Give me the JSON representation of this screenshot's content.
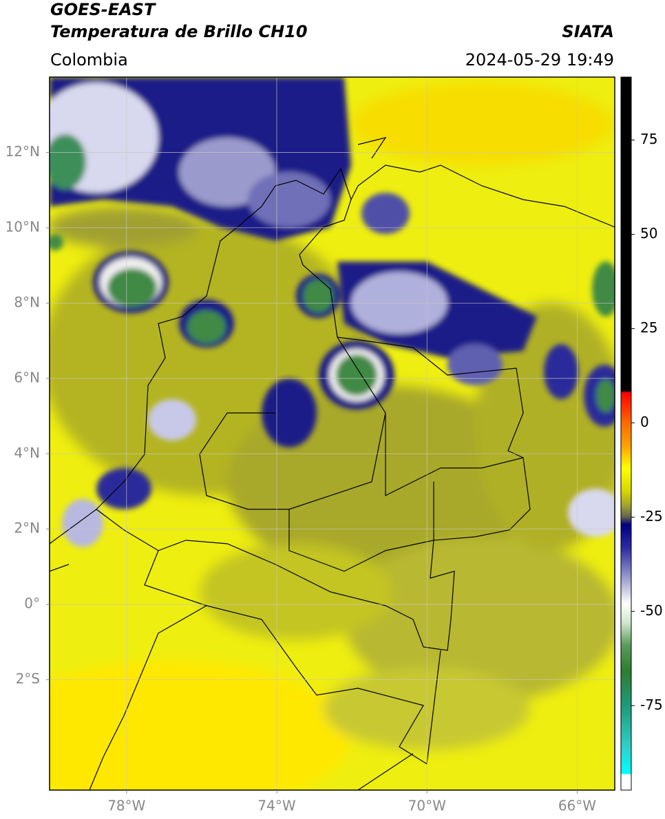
{
  "header": {
    "title": "GOES-EAST",
    "subtitle": "Temperatura de Brillo CH10",
    "source": "SIATA",
    "region": "Colombia",
    "timestamp": "2024-05-29 19:49"
  },
  "map": {
    "lonlim": [
      -80.05,
      -65
    ],
    "latlim": [
      -4.93,
      14
    ],
    "grid": true,
    "lonticks": [
      {
        "value": -78,
        "label": "78°W"
      },
      {
        "value": -74,
        "label": "74°W"
      },
      {
        "value": -70,
        "label": "70°W"
      },
      {
        "value": -66,
        "label": "66°W"
      }
    ],
    "latticks": [
      {
        "value": 12,
        "label": "12°N"
      },
      {
        "value": 10,
        "label": "10°N"
      },
      {
        "value": 8,
        "label": "8°N"
      },
      {
        "value": 6,
        "label": "6°N"
      },
      {
        "value": 4,
        "label": "4°N"
      },
      {
        "value": 2,
        "label": "2°N"
      },
      {
        "value": 0,
        "label": "0°"
      },
      {
        "value": -2,
        "label": "2°S"
      }
    ]
  },
  "colorbar": {
    "lim": [
      -97.4,
      91.7
    ],
    "ticks": [
      -75,
      -50,
      -25,
      0,
      25,
      50,
      75
    ],
    "stops": [
      {
        "value": 91.7,
        "color": "#000000"
      },
      {
        "value": 8.5,
        "color": "#000000"
      },
      {
        "value": 8,
        "color": "#ff0000"
      },
      {
        "value": 0,
        "color": "#ff6a00"
      },
      {
        "value": -6,
        "color": "#ffa000"
      },
      {
        "value": -12,
        "color": "#ffff00"
      },
      {
        "value": -18,
        "color": "#d8d800"
      },
      {
        "value": -22,
        "color": "#a0a030"
      },
      {
        "value": -25,
        "color": "#606050"
      },
      {
        "value": -27,
        "color": "#000080"
      },
      {
        "value": -33,
        "color": "#2a2aa0"
      },
      {
        "value": -41,
        "color": "#9a9acc"
      },
      {
        "value": -48,
        "color": "#ffffff"
      },
      {
        "value": -53,
        "color": "#cfe6cf"
      },
      {
        "value": -59,
        "color": "#5a9a5a"
      },
      {
        "value": -66,
        "color": "#2e7d32"
      },
      {
        "value": -75,
        "color": "#1e9a7a"
      },
      {
        "value": -86,
        "color": "#30d0c8"
      },
      {
        "value": -93,
        "color": "#00ffff"
      },
      {
        "value": -93.3,
        "color": "#ffffff"
      },
      {
        "value": -97.4,
        "color": "#ffffff"
      }
    ]
  }
}
